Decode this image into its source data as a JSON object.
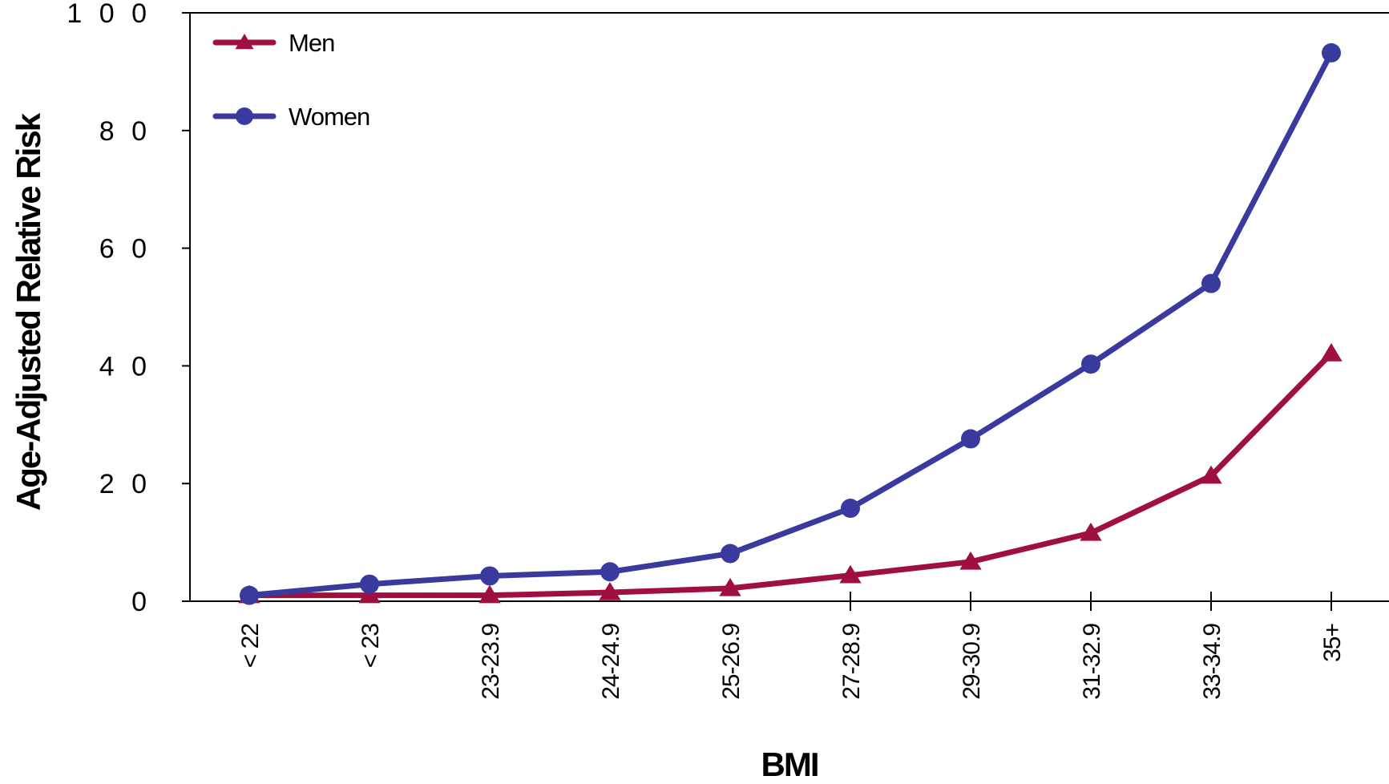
{
  "chart_data": {
    "type": "line",
    "categories": [
      "< 22",
      "< 23",
      "23-23.9",
      "24-24.9",
      "25-26.9",
      "27-28.9",
      "29-30.9",
      "31-32.9",
      "33-34.9",
      "35+"
    ],
    "series": [
      {
        "name": "Men",
        "color": "#A0103F",
        "marker": "triangle",
        "values": [
          1.0,
          1.0,
          1.0,
          1.5,
          2.2,
          4.4,
          6.7,
          11.6,
          21.3,
          42.1
        ]
      },
      {
        "name": "Women",
        "color": "#3A3A9E",
        "marker": "circle",
        "values": [
          1.0,
          2.9,
          4.3,
          5.0,
          8.1,
          15.8,
          27.6,
          40.3,
          54.0,
          93.2
        ]
      }
    ],
    "xlabel": "BMI",
    "ylabel": "Age-Adjusted Relative Risk",
    "ylim": [
      0,
      100
    ],
    "yticks": [
      "0",
      "2 0",
      "4 0",
      "6 0",
      "8 0",
      "1 0 0"
    ],
    "ytick_values": [
      0,
      20,
      40,
      60,
      80,
      100
    ],
    "grid": false,
    "legend_position": "top-left"
  }
}
